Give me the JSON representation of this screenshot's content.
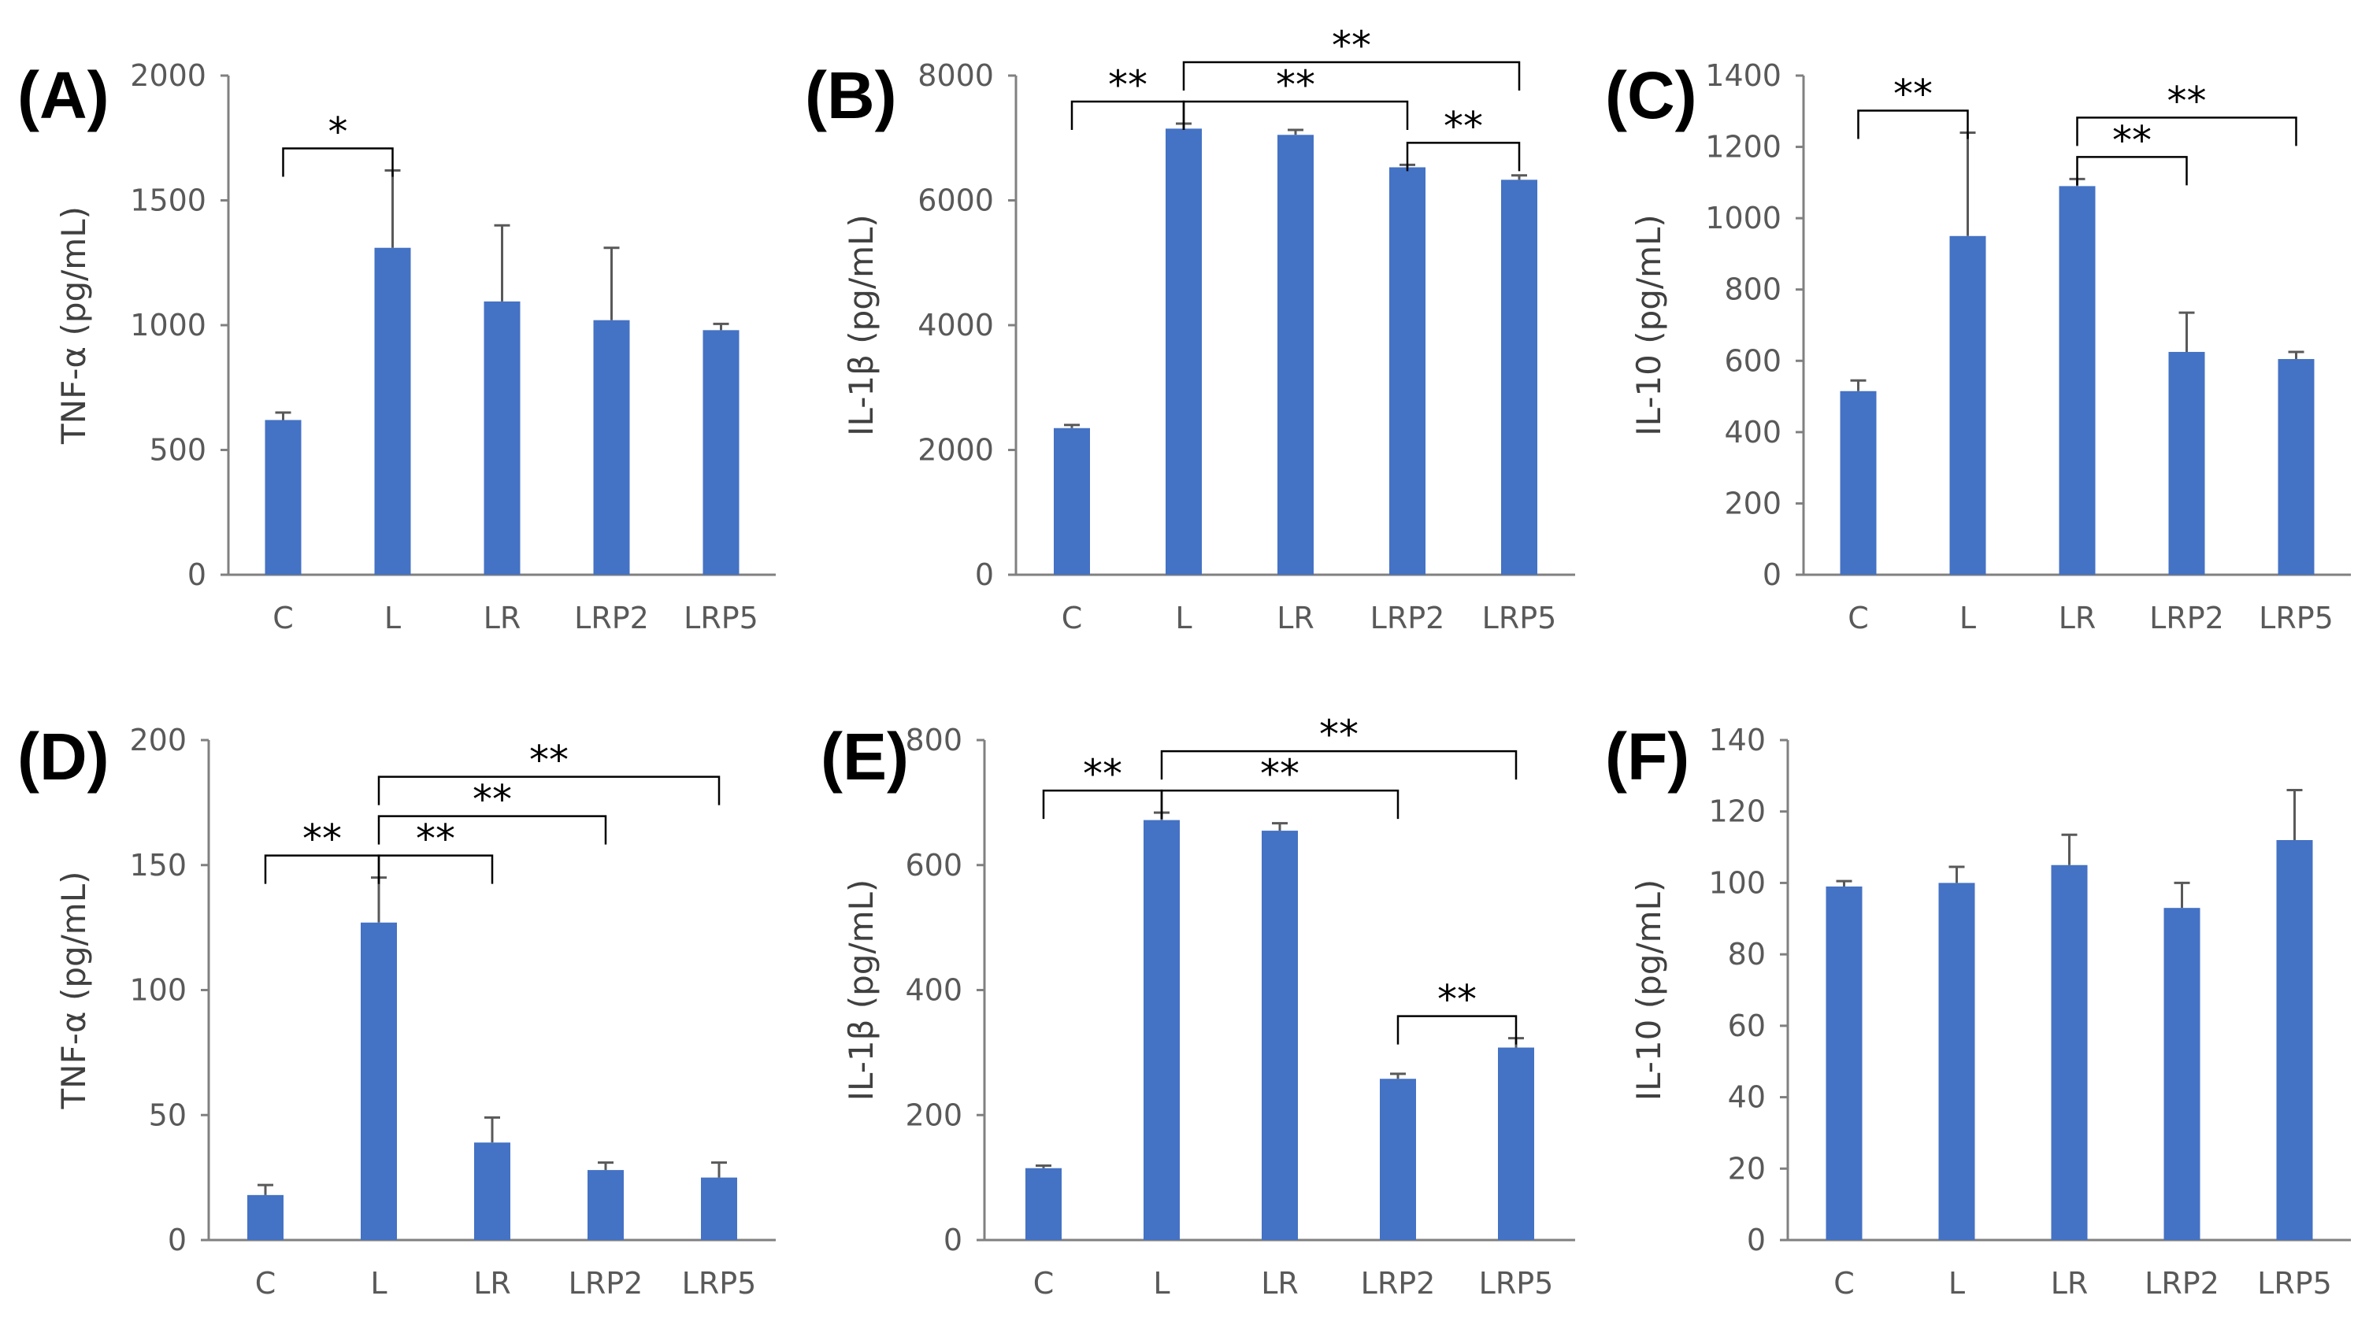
{
  "colors": {
    "bar": "#4472C4",
    "axis": "#808080",
    "text": "#595959"
  },
  "chart_data": [
    {
      "type": "bar",
      "panel": "(A)",
      "title": "",
      "xlabel": "",
      "ylabel": "TNF-α (pg/mL)",
      "categories": [
        "C",
        "L",
        "LR",
        "LRP2",
        "LRP5"
      ],
      "values": [
        620,
        1310,
        1095,
        1020,
        980
      ],
      "errors": [
        30,
        310,
        305,
        290,
        25
      ],
      "ylim": [
        0,
        2000
      ],
      "yticks": [
        0,
        500,
        1000,
        1500,
        2000
      ],
      "grid": false,
      "significance": [
        {
          "from": 0,
          "to": 1,
          "label": "*"
        }
      ]
    },
    {
      "type": "bar",
      "panel": "(B)",
      "title": "",
      "xlabel": "",
      "ylabel": "IL-1β (pg/mL)",
      "categories": [
        "C",
        "L",
        "LR",
        "LRP2",
        "LRP5"
      ],
      "values": [
        2350,
        7150,
        7050,
        6530,
        6330
      ],
      "errors": [
        50,
        80,
        80,
        40,
        70
      ],
      "ylim": [
        0,
        8000
      ],
      "yticks": [
        0,
        2000,
        4000,
        6000,
        8000
      ],
      "grid": false,
      "significance": [
        {
          "from": 0,
          "to": 1,
          "label": "**"
        },
        {
          "from": 1,
          "to": 3,
          "label": "**"
        },
        {
          "from": 1,
          "to": 4,
          "label": "**"
        },
        {
          "from": 3,
          "to": 4,
          "label": "**"
        }
      ]
    },
    {
      "type": "bar",
      "panel": "(C)",
      "title": "",
      "xlabel": "",
      "ylabel": "IL-10 (pg/mL)",
      "categories": [
        "C",
        "L",
        "LR",
        "LRP2",
        "LRP5"
      ],
      "values": [
        515,
        950,
        1090,
        625,
        605
      ],
      "errors": [
        30,
        290,
        20,
        110,
        20
      ],
      "ylim": [
        0,
        1400
      ],
      "yticks": [
        0,
        200,
        400,
        600,
        800,
        1000,
        1200,
        1400
      ],
      "grid": false,
      "significance": [
        {
          "from": 0,
          "to": 1,
          "label": "**"
        },
        {
          "from": 2,
          "to": 3,
          "label": "**"
        },
        {
          "from": 2,
          "to": 4,
          "label": "**"
        }
      ]
    },
    {
      "type": "bar",
      "panel": "(D)",
      "title": "",
      "xlabel": "",
      "ylabel": "TNF-α (pg/mL)",
      "categories": [
        "C",
        "L",
        "LR",
        "LRP2",
        "LRP5"
      ],
      "values": [
        18,
        127,
        39,
        28,
        25
      ],
      "errors": [
        4,
        18,
        10,
        3,
        6
      ],
      "ylim": [
        0,
        200
      ],
      "yticks": [
        0,
        50,
        100,
        150,
        200
      ],
      "grid": false,
      "significance": [
        {
          "from": 0,
          "to": 1,
          "label": "**"
        },
        {
          "from": 1,
          "to": 2,
          "label": "**"
        },
        {
          "from": 1,
          "to": 3,
          "label": "**"
        },
        {
          "from": 1,
          "to": 4,
          "label": "**"
        }
      ]
    },
    {
      "type": "bar",
      "panel": "(E)",
      "title": "",
      "xlabel": "",
      "ylabel": "IL-1β (pg/mL)",
      "categories": [
        "C",
        "L",
        "LR",
        "LRP2",
        "LRP5"
      ],
      "values": [
        115,
        672,
        655,
        258,
        308
      ],
      "errors": [
        4,
        12,
        12,
        8,
        15
      ],
      "ylim": [
        0,
        800
      ],
      "yticks": [
        0,
        200,
        400,
        600,
        800
      ],
      "grid": false,
      "significance": [
        {
          "from": 0,
          "to": 1,
          "label": "**"
        },
        {
          "from": 1,
          "to": 3,
          "label": "**"
        },
        {
          "from": 1,
          "to": 4,
          "label": "**"
        },
        {
          "from": 3,
          "to": 4,
          "label": "**"
        }
      ]
    },
    {
      "type": "bar",
      "panel": "(F)",
      "title": "",
      "xlabel": "",
      "ylabel": "IL-10 (pg/mL)",
      "categories": [
        "C",
        "L",
        "LR",
        "LRP2",
        "LRP5"
      ],
      "values": [
        99,
        100,
        105,
        93,
        112
      ],
      "errors": [
        1.5,
        4.5,
        8.5,
        7,
        14
      ],
      "ylim": [
        0,
        140
      ],
      "yticks": [
        0,
        20,
        40,
        60,
        80,
        100,
        120,
        140
      ],
      "grid": false,
      "significance": []
    }
  ]
}
